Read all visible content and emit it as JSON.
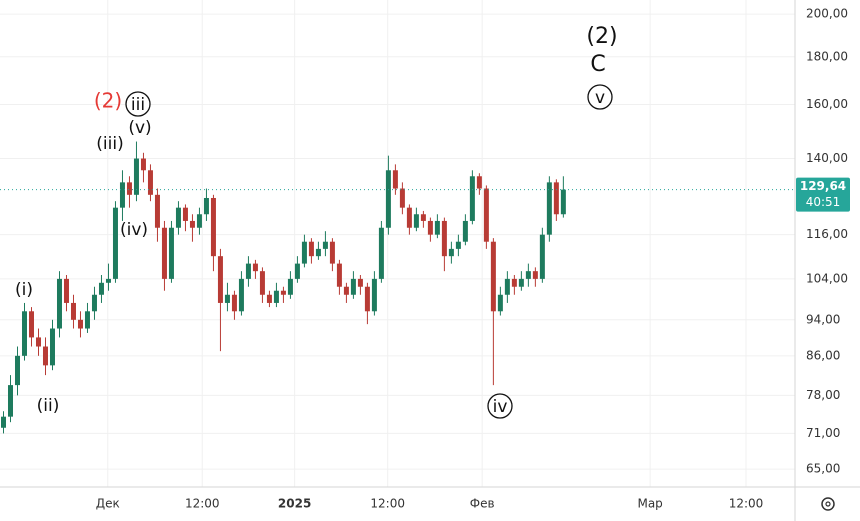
{
  "chart_data": {
    "type": "candlestick",
    "up_color": "#1e7b5e",
    "down_color": "#b83b35",
    "log_scale": true,
    "grid": true,
    "xlim": [
      0,
      113.6
    ],
    "xticks": [
      {
        "value": 15.4,
        "label": "Дек"
      },
      {
        "value": 28.9,
        "label": "12:00"
      },
      {
        "value": 42.1,
        "label": "2025"
      },
      {
        "value": 55.4,
        "label": "12:00"
      },
      {
        "value": 68.9,
        "label": "Фев"
      },
      {
        "value": 92.9,
        "label": "Мар"
      },
      {
        "value": 106.6,
        "label": "12:00"
      }
    ],
    "ylim": [
      62.2,
      207.1
    ],
    "yticks": [
      {
        "value": 65,
        "label": "65,00"
      },
      {
        "value": 71,
        "label": "71,00"
      },
      {
        "value": 78,
        "label": "78,00"
      },
      {
        "value": 86,
        "label": "86,00"
      },
      {
        "value": 94,
        "label": "94,00"
      },
      {
        "value": 104,
        "label": "104,00"
      },
      {
        "value": 116,
        "label": "116,00"
      },
      {
        "value": 140,
        "label": "140,00"
      },
      {
        "value": 160,
        "label": "160,00"
      },
      {
        "value": 180,
        "label": "180,00"
      },
      {
        "value": 200,
        "label": "200,00"
      }
    ],
    "candles": [
      [
        72,
        75,
        71,
        74
      ],
      [
        74,
        82,
        73,
        80
      ],
      [
        80,
        88,
        78,
        86
      ],
      [
        86,
        98,
        85,
        96
      ],
      [
        96,
        97,
        88,
        90
      ],
      [
        90,
        92,
        86,
        88
      ],
      [
        88,
        90,
        82,
        84
      ],
      [
        84,
        94,
        83,
        92
      ],
      [
        92,
        106,
        90,
        104
      ],
      [
        104,
        105,
        96,
        98
      ],
      [
        98,
        100,
        92,
        94
      ],
      [
        94,
        96,
        90,
        92
      ],
      [
        92,
        98,
        91,
        96
      ],
      [
        96,
        102,
        94,
        100
      ],
      [
        100,
        105,
        98,
        103
      ],
      [
        103,
        108,
        101,
        104
      ],
      [
        104,
        126,
        103,
        124
      ],
      [
        124,
        136,
        120,
        132
      ],
      [
        132,
        134,
        124,
        128
      ],
      [
        128,
        146,
        126,
        140
      ],
      [
        140,
        142,
        132,
        136
      ],
      [
        136,
        138,
        126,
        128
      ],
      [
        128,
        130,
        114,
        118
      ],
      [
        118,
        120,
        101,
        104
      ],
      [
        104,
        120,
        103,
        118
      ],
      [
        118,
        126,
        116,
        124
      ],
      [
        124,
        125,
        117,
        120
      ],
      [
        120,
        122,
        114,
        118
      ],
      [
        118,
        124,
        116,
        122
      ],
      [
        122,
        130,
        120,
        127
      ],
      [
        127,
        128,
        106,
        110
      ],
      [
        110,
        112,
        87,
        98
      ],
      [
        98,
        103,
        96,
        100
      ],
      [
        100,
        101,
        94,
        96
      ],
      [
        96,
        106,
        95,
        104
      ],
      [
        104,
        110,
        102,
        108
      ],
      [
        108,
        109,
        104,
        106
      ],
      [
        106,
        107,
        98,
        100
      ],
      [
        100,
        101,
        97,
        98
      ],
      [
        98,
        103,
        97,
        101
      ],
      [
        101,
        102,
        98,
        100
      ],
      [
        100,
        106,
        99,
        104
      ],
      [
        104,
        110,
        103,
        108
      ],
      [
        108,
        116,
        107,
        114
      ],
      [
        114,
        115,
        108,
        110
      ],
      [
        110,
        114,
        109,
        112
      ],
      [
        112,
        117,
        110,
        114
      ],
      [
        114,
        115,
        106,
        108
      ],
      [
        108,
        109,
        100,
        102
      ],
      [
        102,
        103,
        98,
        100
      ],
      [
        100,
        106,
        99,
        104
      ],
      [
        104,
        105,
        100,
        102
      ],
      [
        102,
        103,
        93,
        96
      ],
      [
        96,
        106,
        95,
        104
      ],
      [
        104,
        120,
        103,
        118
      ],
      [
        118,
        141,
        116,
        136
      ],
      [
        136,
        138,
        128,
        130
      ],
      [
        130,
        132,
        122,
        124
      ],
      [
        124,
        125,
        116,
        118
      ],
      [
        118,
        124,
        117,
        122
      ],
      [
        122,
        123,
        118,
        120
      ],
      [
        120,
        121,
        114,
        116
      ],
      [
        116,
        122,
        115,
        120
      ],
      [
        120,
        121,
        106,
        110
      ],
      [
        110,
        114,
        108,
        112
      ],
      [
        112,
        116,
        110,
        114
      ],
      [
        114,
        122,
        113,
        120
      ],
      [
        120,
        136,
        119,
        134
      ],
      [
        134,
        135,
        128,
        130
      ],
      [
        130,
        131,
        112,
        114
      ],
      [
        114,
        115,
        80,
        96
      ],
      [
        96,
        102,
        95,
        100
      ],
      [
        100,
        106,
        98,
        104
      ],
      [
        104,
        105,
        100,
        102
      ],
      [
        102,
        106,
        101,
        104
      ],
      [
        104,
        108,
        102,
        106
      ],
      [
        106,
        107,
        102,
        104
      ],
      [
        104,
        118,
        103,
        116
      ],
      [
        116,
        134,
        114,
        132
      ],
      [
        132,
        133,
        120,
        122
      ],
      [
        122,
        134,
        121,
        129.64
      ]
    ],
    "last_price_label": "129,64",
    "countdown": "40:51",
    "last_price_color": "#26a69a",
    "annotations": [
      {
        "text": "(2)",
        "color": "#e53935",
        "circled": false
      },
      {
        "text": "iii",
        "color": "#111111",
        "circled": true
      },
      {
        "text": "(v)",
        "color": "#111111",
        "circled": false
      },
      {
        "text": "(iii)",
        "color": "#111111",
        "circled": false
      },
      {
        "text": "(iv)",
        "color": "#111111",
        "circled": false
      },
      {
        "text": "(i)",
        "color": "#111111",
        "circled": false
      },
      {
        "text": "(ii)",
        "color": "#111111",
        "circled": false
      },
      {
        "text": "(2)",
        "color": "#111111",
        "circled": false
      },
      {
        "text": "C",
        "color": "#111111",
        "circled": false
      },
      {
        "text": "v",
        "color": "#111111",
        "circled": true
      },
      {
        "text": "iv",
        "color": "#111111",
        "circled": true
      }
    ]
  }
}
